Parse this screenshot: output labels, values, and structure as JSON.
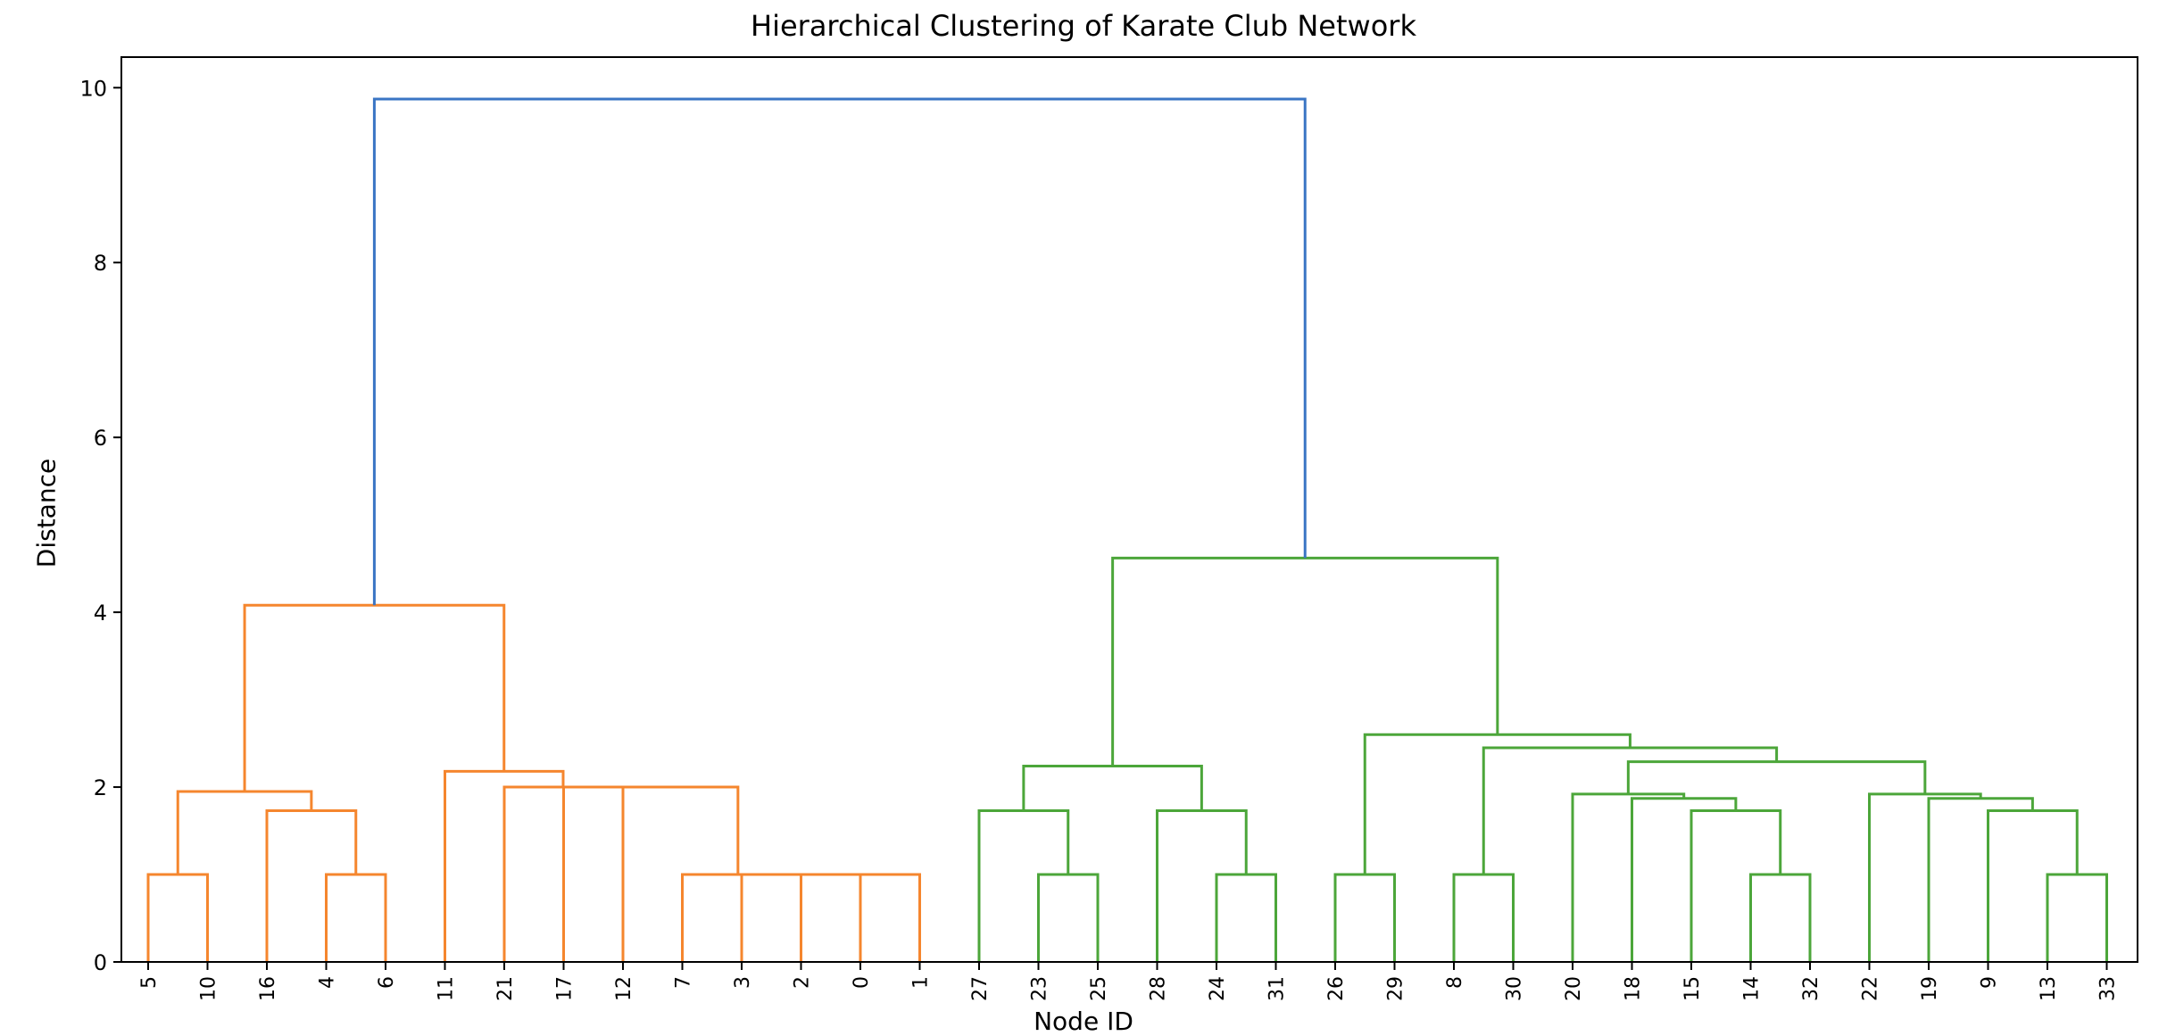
{
  "chart_data": {
    "type": "dendrogram",
    "title": "Hierarchical Clustering of Karate Club Network",
    "xlabel": "Node ID",
    "ylabel": "Distance",
    "ylim": [
      0,
      10.35
    ],
    "yticks": [
      0,
      2,
      4,
      6,
      8,
      10
    ],
    "grid": false,
    "leaf_order": [
      "5",
      "10",
      "16",
      "4",
      "6",
      "11",
      "21",
      "17",
      "12",
      "7",
      "3",
      "2",
      "0",
      "1",
      "27",
      "23",
      "25",
      "28",
      "24",
      "31",
      "26",
      "29",
      "8",
      "30",
      "20",
      "18",
      "15",
      "14",
      "32",
      "22",
      "19",
      "9",
      "13",
      "33"
    ],
    "colors": {
      "cluster_1": "#ff7f0e",
      "cluster_2": "#2ca02c",
      "root": "#1f77b4"
    },
    "merges": [
      {
        "id": "A1",
        "left": "5",
        "right": "10",
        "height": 1.0,
        "color": "cluster_1"
      },
      {
        "id": "A2",
        "left": "4",
        "right": "6",
        "height": 1.0,
        "color": "cluster_1"
      },
      {
        "id": "A3",
        "left": "16",
        "right": "A2",
        "height": 1.73,
        "color": "cluster_1"
      },
      {
        "id": "A4",
        "left": "A1",
        "right": "A3",
        "height": 1.95,
        "color": "cluster_1"
      },
      {
        "id": "B1",
        "left": "0",
        "right": "1",
        "height": 1.0,
        "color": "cluster_1"
      },
      {
        "id": "B2",
        "left": "2",
        "right": "B1",
        "height": 1.0,
        "color": "cluster_1"
      },
      {
        "id": "B3",
        "left": "3",
        "right": "B2",
        "height": 1.0,
        "color": "cluster_1"
      },
      {
        "id": "B4",
        "left": "7",
        "right": "B3",
        "height": 1.0,
        "color": "cluster_1"
      },
      {
        "id": "B5",
        "left": "12",
        "right": "B4",
        "height": 2.0,
        "color": "cluster_1"
      },
      {
        "id": "B6",
        "left": "17",
        "right": "B5",
        "height": 2.0,
        "color": "cluster_1"
      },
      {
        "id": "B7",
        "left": "21",
        "right": "B6",
        "height": 2.0,
        "color": "cluster_1"
      },
      {
        "id": "B8",
        "left": "11",
        "right": "B7",
        "height": 2.18,
        "color": "cluster_1"
      },
      {
        "id": "C1",
        "left": "A4",
        "right": "B8",
        "height": 4.08,
        "color": "cluster_1"
      },
      {
        "id": "D1",
        "left": "23",
        "right": "25",
        "height": 1.0,
        "color": "cluster_2"
      },
      {
        "id": "D2",
        "left": "27",
        "right": "D1",
        "height": 1.73,
        "color": "cluster_2"
      },
      {
        "id": "D3",
        "left": "24",
        "right": "31",
        "height": 1.0,
        "color": "cluster_2"
      },
      {
        "id": "D4",
        "left": "28",
        "right": "D3",
        "height": 1.73,
        "color": "cluster_2"
      },
      {
        "id": "D5",
        "left": "D2",
        "right": "D4",
        "height": 2.24,
        "color": "cluster_2"
      },
      {
        "id": "E1",
        "left": "26",
        "right": "29",
        "height": 1.0,
        "color": "cluster_2"
      },
      {
        "id": "E2",
        "left": "8",
        "right": "30",
        "height": 1.0,
        "color": "cluster_2"
      },
      {
        "id": "F1",
        "left": "14",
        "right": "32",
        "height": 1.0,
        "color": "cluster_2"
      },
      {
        "id": "F2",
        "left": "15",
        "right": "F1",
        "height": 1.73,
        "color": "cluster_2"
      },
      {
        "id": "F3",
        "left": "18",
        "right": "F2",
        "height": 1.87,
        "color": "cluster_2"
      },
      {
        "id": "F4",
        "left": "20",
        "right": "F3",
        "height": 1.92,
        "color": "cluster_2"
      },
      {
        "id": "G1",
        "left": "13",
        "right": "33",
        "height": 1.0,
        "color": "cluster_2"
      },
      {
        "id": "G2",
        "left": "9",
        "right": "G1",
        "height": 1.73,
        "color": "cluster_2"
      },
      {
        "id": "G3",
        "left": "19",
        "right": "G2",
        "height": 1.87,
        "color": "cluster_2"
      },
      {
        "id": "G4",
        "left": "22",
        "right": "G3",
        "height": 1.92,
        "color": "cluster_2"
      },
      {
        "id": "H1",
        "left": "F4",
        "right": "G4",
        "height": 2.29,
        "color": "cluster_2"
      },
      {
        "id": "H2",
        "left": "E2",
        "right": "H1",
        "height": 2.45,
        "color": "cluster_2"
      },
      {
        "id": "H3",
        "left": "E1",
        "right": "H2",
        "height": 2.6,
        "color": "cluster_2"
      },
      {
        "id": "H4",
        "left": "D5",
        "right": "H3",
        "height": 4.62,
        "color": "cluster_2"
      },
      {
        "id": "R",
        "left": "C1",
        "right": "H4",
        "height": 9.87,
        "color": "root"
      }
    ]
  }
}
